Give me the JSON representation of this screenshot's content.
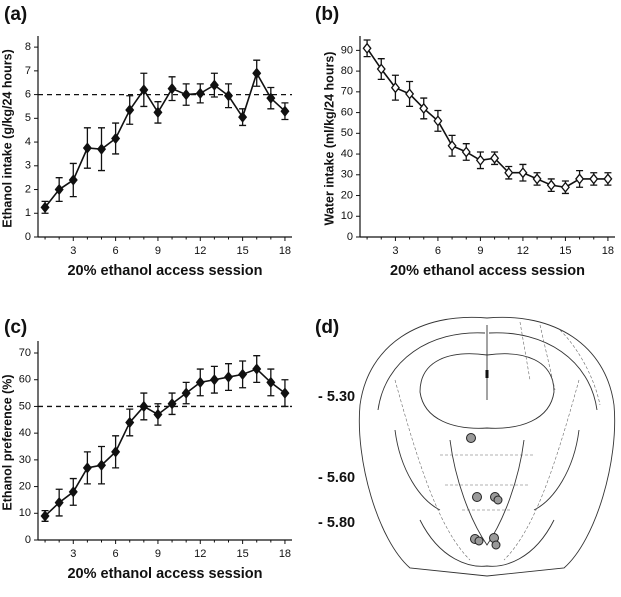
{
  "chart_data": [
    {
      "type": "line",
      "panel_label": "(a)",
      "xlabel": "20% ethanol access session",
      "ylabel": "Ethanol intake (g/kg/24 hours)",
      "x": [
        1,
        2,
        3,
        4,
        5,
        6,
        7,
        8,
        9,
        10,
        11,
        12,
        13,
        14,
        15,
        16,
        17,
        18
      ],
      "series": [
        {
          "color": "#111111",
          "marker_face": "#111111",
          "values": [
            1.25,
            2.0,
            2.4,
            3.75,
            3.7,
            4.15,
            5.35,
            6.2,
            5.25,
            6.25,
            6.0,
            6.05,
            6.4,
            5.95,
            5.05,
            6.9,
            5.85,
            5.3
          ],
          "errors": [
            0.25,
            0.5,
            0.7,
            0.85,
            0.9,
            0.65,
            0.6,
            0.7,
            0.45,
            0.5,
            0.45,
            0.4,
            0.5,
            0.5,
            0.35,
            0.55,
            0.45,
            0.35
          ]
        }
      ],
      "reference_line": 6,
      "xlim": [
        0.5,
        18.5
      ],
      "xticks": [
        3,
        6,
        9,
        12,
        15,
        18
      ],
      "ylim": [
        0,
        8.3
      ],
      "yticks": [
        0,
        1,
        2,
        3,
        4,
        5,
        6,
        7,
        8
      ]
    },
    {
      "type": "line",
      "panel_label": "(b)",
      "xlabel": "20% ethanol access session",
      "ylabel": "Water intake (ml/kg/24 hours)",
      "x": [
        1,
        2,
        3,
        4,
        5,
        6,
        7,
        8,
        9,
        10,
        11,
        12,
        13,
        14,
        15,
        16,
        17,
        18
      ],
      "series": [
        {
          "color": "#111111",
          "marker_face": "#ffffff",
          "values": [
            91,
            81,
            72,
            69,
            62,
            56,
            44,
            41,
            37,
            38,
            31,
            31,
            28,
            25,
            24,
            28,
            28,
            28
          ],
          "errors": [
            4,
            5,
            6,
            6,
            5,
            5,
            5,
            4,
            4,
            3,
            3,
            4,
            3,
            3,
            3,
            4,
            3,
            3
          ]
        }
      ],
      "xlim": [
        0.5,
        18.5
      ],
      "xticks": [
        3,
        6,
        9,
        12,
        15,
        18
      ],
      "ylim": [
        0,
        95
      ],
      "yticks": [
        0,
        10,
        20,
        30,
        40,
        50,
        60,
        70,
        80,
        90
      ]
    },
    {
      "type": "line",
      "panel_label": "(c)",
      "xlabel": "20% ethanol access session",
      "ylabel": "Ethanol preference (%)",
      "x": [
        1,
        2,
        3,
        4,
        5,
        6,
        7,
        8,
        9,
        10,
        11,
        12,
        13,
        14,
        15,
        16,
        17,
        18
      ],
      "series": [
        {
          "color": "#111111",
          "marker_face": "#111111",
          "values": [
            9,
            14,
            18,
            27,
            28,
            33,
            44,
            50,
            47,
            51,
            55,
            59,
            60,
            61,
            62,
            64,
            59,
            55
          ],
          "errors": [
            2,
            5,
            5,
            6,
            7,
            6,
            5,
            5,
            4,
            4,
            4,
            5,
            5,
            5,
            5,
            5,
            5,
            5
          ]
        }
      ],
      "reference_line": 50,
      "xlim": [
        0.5,
        18.5
      ],
      "xticks": [
        3,
        6,
        9,
        12,
        15,
        18
      ],
      "ylim": [
        0,
        73
      ],
      "yticks": [
        0,
        10,
        20,
        30,
        40,
        50,
        60,
        70
      ]
    }
  ],
  "diagram": {
    "panel_label": "(d)",
    "levels": [
      "- 5.30",
      "- 5.60",
      "- 5.80"
    ]
  }
}
